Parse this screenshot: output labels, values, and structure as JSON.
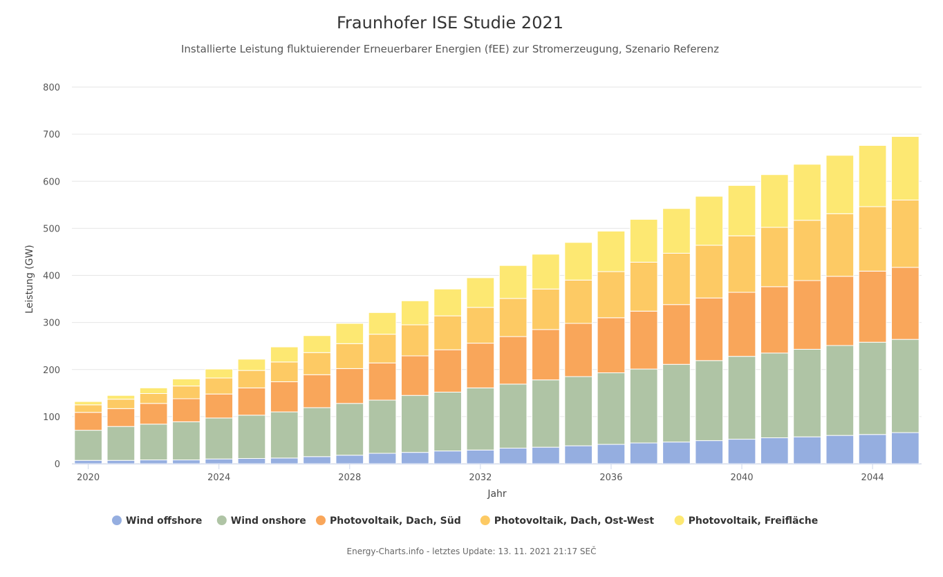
{
  "chart_data": {
    "type": "bar",
    "stacked": true,
    "title": "Fraunhofer ISE Studie 2021",
    "subtitle": "Installierte Leistung fluktuierender Erneuerbarer Energien (fEE) zur Stromerzeugung, Szenario Referenz",
    "xlabel": "Jahr",
    "ylabel": "Leistung (GW)",
    "ylim": [
      0,
      800
    ],
    "yticks": [
      0,
      100,
      200,
      300,
      400,
      500,
      600,
      700,
      800
    ],
    "xtick_labels": [
      "2020",
      "2024",
      "2028",
      "2032",
      "2036",
      "2040",
      "2044"
    ],
    "grid": true,
    "legend_position": "bottom",
    "categories": [
      "2020",
      "2021",
      "2022",
      "2023",
      "2024",
      "2025",
      "2026",
      "2027",
      "2028",
      "2029",
      "2030",
      "2031",
      "2032",
      "2033",
      "2034",
      "2035",
      "2036",
      "2037",
      "2038",
      "2039",
      "2040",
      "2041",
      "2042",
      "2043",
      "2044",
      "2045"
    ],
    "series": [
      {
        "name": "Wind offshore",
        "color": "#95aee0",
        "values": [
          7,
          7,
          8,
          8,
          10,
          11,
          12,
          15,
          18,
          22,
          24,
          27,
          29,
          33,
          35,
          38,
          41,
          44,
          46,
          49,
          52,
          55,
          57,
          60,
          62,
          66
        ]
      },
      {
        "name": "Wind onshore",
        "color": "#afc4a5",
        "values": [
          64,
          72,
          76,
          81,
          87,
          92,
          98,
          104,
          110,
          113,
          121,
          125,
          132,
          136,
          143,
          147,
          152,
          157,
          165,
          170,
          176,
          180,
          186,
          191,
          196,
          198
        ]
      },
      {
        "name": "Photovoltaik, Dach, Süd",
        "color": "#f9a65a",
        "values": [
          38,
          38,
          44,
          49,
          51,
          58,
          64,
          70,
          74,
          79,
          84,
          90,
          95,
          101,
          107,
          113,
          117,
          123,
          127,
          133,
          136,
          141,
          146,
          147,
          151,
          153
        ]
      },
      {
        "name": "Photovoltaik, Dach, Ost-West",
        "color": "#fdca64",
        "values": [
          16,
          20,
          21,
          27,
          34,
          37,
          42,
          47,
          53,
          61,
          66,
          72,
          76,
          81,
          86,
          92,
          98,
          104,
          109,
          112,
          120,
          126,
          128,
          133,
          137,
          143
        ]
      },
      {
        "name": "Photovoltaik, Freifläche",
        "color": "#fde872",
        "values": [
          7,
          8,
          12,
          15,
          19,
          24,
          32,
          36,
          43,
          46,
          51,
          57,
          63,
          70,
          74,
          80,
          86,
          91,
          95,
          104,
          107,
          112,
          119,
          124,
          130,
          135
        ]
      }
    ],
    "footer": "Energy-Charts.info - letztes Update: 13. 11. 2021 21:17 SEČ"
  }
}
